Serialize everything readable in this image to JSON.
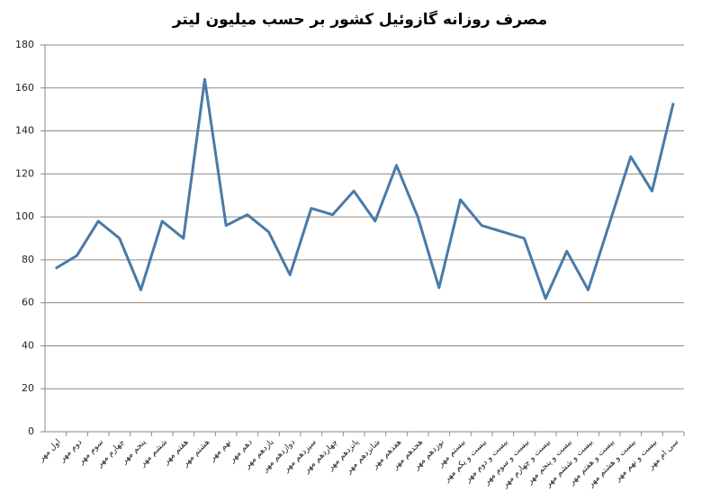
{
  "chart_data": {
    "type": "line",
    "title": "مصرف روزانه گازوئیل کشور بر حسب میلیون لیتر",
    "categories": [
      "اول مهر",
      "دوم مهر",
      "سوم مهر",
      "چهارم مهر",
      "پنجم مهر",
      "ششم مهر",
      "هفتم مهر",
      "هشتم مهر",
      "نهم مهر",
      "دهم مهر",
      "یازدهم مهر",
      "دوازدهم مهر",
      "سیزدهم مهر",
      "چهاردهم مهر",
      "پانزدهم مهر",
      "شانزدهم مهر",
      "هفدهم مهر",
      "هجدهم مهر",
      "نوزدهم مهر",
      "بیستم مهر",
      "بیست و یکم مهر",
      "بیست و دوم مهر",
      "بیست و سوم مهر",
      "بیست و چهارم مهر",
      "بیست و پنجم مهر",
      "بیست و ششم مهر",
      "بیست و هفتم مهر",
      "بیست و هشتم مهر",
      "بیست و نهم مهر",
      "سی ام مهر"
    ],
    "values": [
      76,
      82,
      98,
      90,
      66,
      98,
      90,
      164,
      96,
      101,
      93,
      73,
      104,
      101,
      112,
      98,
      124,
      100,
      67,
      108,
      96,
      93,
      90,
      62,
      84,
      66,
      97,
      128,
      112,
      153
    ],
    "color": "#4a7aa6",
    "ylim": [
      0,
      180
    ],
    "yticks": [
      0,
      20,
      40,
      60,
      80,
      100,
      120,
      140,
      160,
      180
    ],
    "grid": true
  }
}
